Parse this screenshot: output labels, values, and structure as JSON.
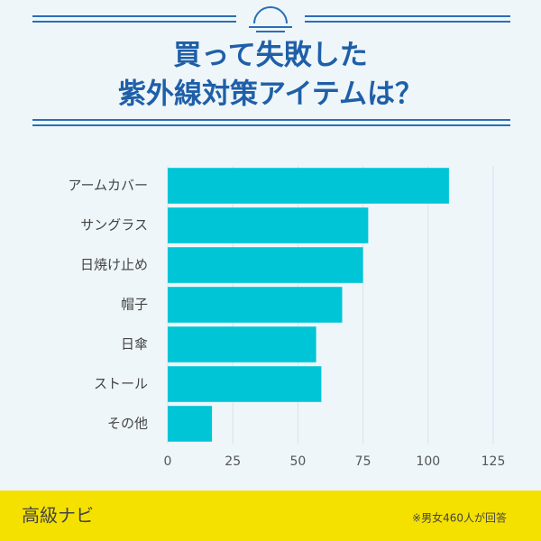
{
  "chart_data": {
    "type": "bar",
    "orientation": "horizontal",
    "title": [
      "買って失敗した",
      "紫外線対策アイテムは？"
    ],
    "categories": [
      "アームカバー",
      "サングラス",
      "日焼け止め",
      "帽子",
      "日傘",
      "ストール",
      "その他"
    ],
    "values": [
      108,
      77,
      75,
      67,
      57,
      59,
      17
    ],
    "color": "#00c5d6",
    "xlim": [
      0,
      125
    ],
    "xticks": [
      0,
      25,
      50,
      75,
      100,
      125
    ],
    "grid": true
  },
  "footer": {
    "brand": "高級ナビ",
    "note": "※男女460人が回答"
  }
}
